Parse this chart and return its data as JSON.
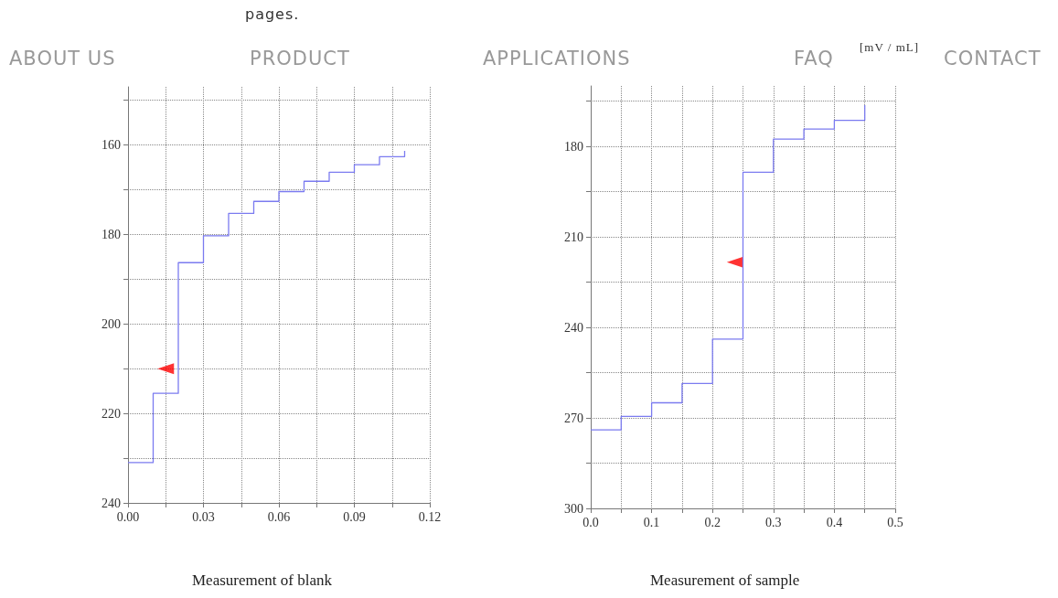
{
  "chart_data": [
    {
      "type": "step",
      "title": "Measurement of blank",
      "annotations": [
        "pages.",
        "ABOUT US",
        "PRODUCT",
        "APPLICATIONS"
      ],
      "grid": true,
      "xlim": [
        0,
        0.12
      ],
      "ylim": [
        240,
        147
      ],
      "xticks": [
        {
          "value": 0,
          "label": "0.00"
        },
        {
          "value": 0.015,
          "label": null
        },
        {
          "value": 0.03,
          "label": "0.03"
        },
        {
          "value": 0.045,
          "label": null
        },
        {
          "value": 0.06,
          "label": "0.06"
        },
        {
          "value": 0.075,
          "label": null
        },
        {
          "value": 0.09,
          "label": "0.09"
        },
        {
          "value": 0.105,
          "label": null
        },
        {
          "value": 0.12,
          "label": "0.12"
        }
      ],
      "yticks": [
        {
          "value": 150,
          "label": null
        },
        160,
        {
          "value": 170,
          "label": null
        },
        180,
        {
          "value": 190,
          "label": null
        },
        200,
        {
          "value": 210,
          "label": null
        },
        220,
        {
          "value": 230,
          "label": null
        },
        240
      ],
      "series": [
        {
          "color": "#7b7bf0",
          "marker": "none",
          "x": [
            0,
            0.01,
            0.02,
            0.03,
            0.04,
            0.05,
            0.06,
            0.07,
            0.08,
            0.09,
            0.1,
            0.11
          ],
          "values": [
            231,
            215.5,
            186.3,
            180.3,
            175.3,
            172.6,
            170.4,
            168.1,
            166.1,
            164.4,
            162.6,
            161.3
          ]
        },
        {
          "type": "scatter",
          "color": "#ff0000",
          "marker": "triangle",
          "x": [
            0.015
          ],
          "values": [
            210
          ]
        }
      ]
    },
    {
      "type": "step",
      "title": "Measurement of sample",
      "annotations": [
        "FAQ",
        "[mV / mL]",
        "CONTACT"
      ],
      "grid": true,
      "xlim": [
        0,
        0.5
      ],
      "ylim": [
        300,
        160
      ],
      "xticks": [
        {
          "value": 0,
          "label": "0.0"
        },
        {
          "value": 0.05,
          "label": null
        },
        {
          "value": 0.1,
          "label": "0.1"
        },
        {
          "value": 0.15,
          "label": null
        },
        {
          "value": 0.2,
          "label": "0.2"
        },
        {
          "value": 0.25,
          "label": null
        },
        {
          "value": 0.3,
          "label": "0.3"
        },
        {
          "value": 0.35,
          "label": null
        },
        {
          "value": 0.4,
          "label": "0.4"
        },
        {
          "value": 0.45,
          "label": null
        },
        {
          "value": 0.5,
          "label": "0.5"
        }
      ],
      "yticks": [
        {
          "value": 165,
          "label": null
        },
        180,
        {
          "value": 195,
          "label": null
        },
        210,
        {
          "value": 225,
          "label": null
        },
        240,
        {
          "value": 255,
          "label": null
        },
        270,
        {
          "value": 285,
          "label": null
        },
        300
      ],
      "series": [
        {
          "color": "#7b7bf0",
          "marker": "none",
          "x": [
            0,
            0.05,
            0.1,
            0.15,
            0.2,
            0.25,
            0.3,
            0.35,
            0.4,
            0.45
          ],
          "values": [
            274,
            269.5,
            265,
            258.6,
            243.9,
            188.6,
            177.6,
            174.3,
            171.4,
            166.4
          ]
        },
        {
          "type": "scatter",
          "color": "#ff0000",
          "marker": "triangle",
          "x": [
            0.237
          ],
          "values": [
            218.4
          ]
        }
      ]
    }
  ]
}
